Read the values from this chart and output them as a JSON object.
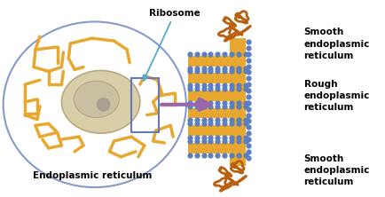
{
  "background_color": "#ffffff",
  "er_color": "#e8a830",
  "ribosome_color": "#5b7fc0",
  "smooth_er_color": "#b86010",
  "nucleus_outer_color": "#d8c8a0",
  "nucleus_outer_fill": "#e8dfc0",
  "nucleus_inner_fill": "#c8c0b0",
  "cell_edge_color": "#8899cc",
  "zoom_rect_color": "#6677bb",
  "arrow_color": "#9966aa",
  "ribosome_arrow_color": "#55aacc",
  "label_ribosome": "Ribosome",
  "label_er": "Endoplasmic reticulum",
  "label_smooth_top": "Smooth\nendoplasmic\nreticulum",
  "label_rough": "Rough\nendoplasmic\nreticulum",
  "label_smooth_bot": "Smooth\nendoplasmic\nreticulum",
  "font_size": 7.5
}
